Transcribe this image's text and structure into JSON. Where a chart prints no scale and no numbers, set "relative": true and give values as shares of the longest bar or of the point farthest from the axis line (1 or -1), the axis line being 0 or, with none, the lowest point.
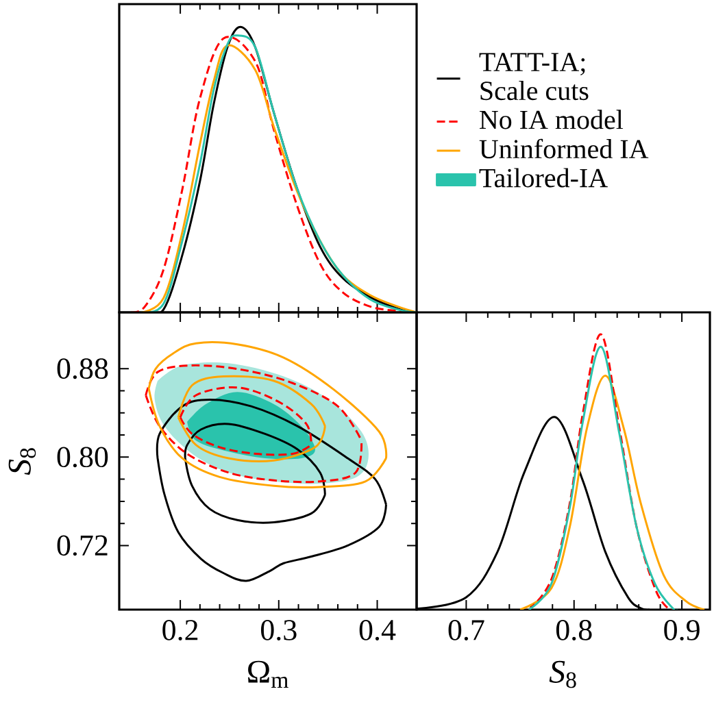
{
  "chart_data": [
    {
      "type": "line",
      "relative": true,
      "xlim": [
        0.138,
        0.44
      ],
      "xticks": [
        0.2,
        0.3,
        0.4
      ],
      "tick_labels": false,
      "legend": "right",
      "series": [
        {
          "name": "TATT-IA; Scale cuts",
          "color": "#000000",
          "line_style": "solid",
          "x": [
            0.164,
            0.183,
            0.202,
            0.22,
            0.234,
            0.248,
            0.261,
            0.276,
            0.295,
            0.318,
            0.342,
            0.365,
            0.393,
            0.421,
            0.44
          ],
          "values": [
            0,
            0.01,
            0.2,
            0.46,
            0.73,
            0.93,
            1,
            0.93,
            0.7,
            0.44,
            0.23,
            0.12,
            0.053,
            0.013,
            0
          ]
        },
        {
          "name": "No IA model",
          "color": "#ff0000",
          "line_style": "dashed",
          "x": [
            0.15,
            0.164,
            0.183,
            0.202,
            0.22,
            0.244,
            0.276,
            0.295,
            0.318,
            0.342,
            0.365,
            0.393,
            0.421,
            0.44
          ],
          "values": [
            0,
            0.02,
            0.15,
            0.43,
            0.75,
            0.96,
            0.88,
            0.64,
            0.38,
            0.17,
            0.07,
            0.02,
            0.005,
            0
          ]
        },
        {
          "name": "Uninformed IA",
          "color": "#ffa500",
          "line_style": "solid",
          "x": [
            0.16,
            0.183,
            0.202,
            0.22,
            0.234,
            0.248,
            0.276,
            0.295,
            0.318,
            0.342,
            0.365,
            0.393,
            0.421,
            0.44
          ],
          "values": [
            0,
            0.05,
            0.28,
            0.59,
            0.81,
            0.935,
            0.85,
            0.65,
            0.43,
            0.25,
            0.13,
            0.06,
            0.02,
            0
          ]
        },
        {
          "name": "Tailored-IA",
          "color": "#2ac3ac",
          "line_style": "solid",
          "x": [
            0.16,
            0.183,
            0.202,
            0.22,
            0.234,
            0.248,
            0.258,
            0.276,
            0.295,
            0.318,
            0.342,
            0.365,
            0.393,
            0.421,
            0.44
          ],
          "values": [
            0,
            0.03,
            0.25,
            0.52,
            0.78,
            0.94,
            0.97,
            0.93,
            0.7,
            0.44,
            0.25,
            0.13,
            0.045,
            0.01,
            0
          ]
        }
      ]
    },
    {
      "type": "line",
      "xlabel": "Ω$_{m}$",
      "ylabel": "*S*$_{8}$",
      "xlim": [
        0.138,
        0.44
      ],
      "ylim": [
        0.662,
        0.931
      ],
      "xticks": [
        0.2,
        0.3,
        0.4
      ],
      "yticks": [
        0.72,
        {
          "value": 0.8,
          "label": "0.80"
        },
        0.88
      ],
      "series": [
        {
          "type": "area",
          "color": "#a8e5dc",
          "x": [
            0.177,
            0.202,
            0.249,
            0.305,
            0.351,
            0.384,
            0.391,
            0.379,
            0.342,
            0.295,
            0.249,
            0.212,
            0.184,
            0.174,
            0.177
          ],
          "values": [
            0.869,
            0.883,
            0.885,
            0.873,
            0.852,
            0.823,
            0.799,
            0.782,
            0.776,
            0.778,
            0.786,
            0.803,
            0.828,
            0.852,
            0.869
          ]
        },
        {
          "type": "area",
          "color": "#2ac3ac",
          "x": [
            0.207,
            0.226,
            0.258,
            0.295,
            0.323,
            0.337,
            0.323,
            0.286,
            0.249,
            0.216,
            0.207
          ],
          "values": [
            0.832,
            0.848,
            0.859,
            0.848,
            0.828,
            0.807,
            0.799,
            0.799,
            0.805,
            0.815,
            0.832
          ]
        },
        {
          "color": "#000000",
          "line_style": "solid",
          "x": [
            0.177,
            0.179,
            0.202,
            0.23,
            0.272,
            0.319,
            0.37,
            0.398,
            0.409,
            null,
            0.177,
            0.184,
            0.198,
            0.221,
            0.244,
            0.267,
            0.291,
            0.305,
            0.333,
            0.37,
            0.402,
            0.409
          ],
          "values": [
            0.799,
            0.821,
            0.846,
            0.852,
            0.846,
            0.828,
            0.799,
            0.78,
            0.757,
            null,
            0.799,
            0.766,
            0.732,
            0.708,
            0.695,
            0.688,
            0.697,
            0.704,
            0.71,
            0.72,
            0.737,
            0.757
          ]
        },
        {
          "color": "#000000",
          "line_style": "solid",
          "x": [
            0.205,
            0.207,
            0.221,
            0.249,
            0.286,
            0.319,
            0.342,
            0.347,
            null,
            0.205,
            0.212,
            0.23,
            0.258,
            0.295,
            0.333,
            0.347
          ],
          "values": [
            0.799,
            0.811,
            0.825,
            0.83,
            0.821,
            0.807,
            0.786,
            0.766,
            null,
            0.799,
            0.774,
            0.753,
            0.743,
            0.741,
            0.749,
            0.766
          ]
        },
        {
          "color": "#ff0000",
          "line_style": "dashed",
          "x": [
            0.165,
            0.177,
            0.212,
            0.263,
            0.314,
            0.36,
            0.384,
            null,
            0.165,
            0.179,
            0.207,
            0.249,
            0.295,
            0.342,
            0.378,
            0.384
          ],
          "values": [
            0.856,
            0.877,
            0.883,
            0.879,
            0.867,
            0.846,
            0.815,
            null,
            0.856,
            0.828,
            0.803,
            0.786,
            0.779,
            0.778,
            0.786,
            0.815
          ]
        },
        {
          "color": "#ff0000",
          "line_style": "dashed",
          "x": [
            0.2,
            0.216,
            0.258,
            0.3,
            0.328,
            0.333,
            null,
            0.2,
            0.212,
            0.24,
            0.277,
            0.314,
            0.333
          ],
          "values": [
            0.836,
            0.856,
            0.863,
            0.85,
            0.83,
            0.811,
            null,
            0.836,
            0.821,
            0.809,
            0.803,
            0.803,
            0.811
          ]
        },
        {
          "color": "#ffa500",
          "line_style": "solid",
          "x": [
            0.168,
            0.175,
            0.193,
            0.216,
            0.258,
            0.305,
            0.356,
            0.402,
            0.409,
            null,
            0.168,
            0.179,
            0.202,
            0.24,
            0.295,
            0.342,
            0.388,
            0.409
          ],
          "values": [
            0.862,
            0.88,
            0.894,
            0.903,
            0.902,
            0.89,
            0.861,
            0.823,
            0.799,
            null,
            0.862,
            0.828,
            0.799,
            0.782,
            0.774,
            0.773,
            0.778,
            0.799
          ]
        },
        {
          "color": "#ffa500",
          "line_style": "solid",
          "x": [
            0.198,
            0.212,
            0.244,
            0.295,
            0.333,
            0.347,
            null,
            0.198,
            0.216,
            0.249,
            0.295,
            0.337,
            0.347
          ],
          "values": [
            0.836,
            0.865,
            0.873,
            0.869,
            0.848,
            0.828,
            null,
            0.836,
            0.811,
            0.799,
            0.797,
            0.809,
            0.828
          ]
        }
      ]
    },
    {
      "type": "line",
      "relative": true,
      "xlabel": "*S*$_{8}$",
      "xlim": [
        0.654,
        0.926
      ],
      "xticks": [
        0.7,
        0.8,
        0.9
      ],
      "tick_labels": "x",
      "series": [
        {
          "color": "#000000",
          "line_style": "solid",
          "x": [
            0.654,
            0.7,
            0.729,
            0.754,
            0.782,
            0.808,
            0.829,
            0.85,
            0.862,
            0.87
          ],
          "values": [
            0.003,
            0.045,
            0.21,
            0.5,
            0.7,
            0.47,
            0.21,
            0.045,
            0.005,
            0
          ]
        },
        {
          "color": "#ffa500",
          "line_style": "solid",
          "x": [
            0.75,
            0.779,
            0.796,
            0.812,
            0.829,
            0.846,
            0.862,
            0.883,
            0.904,
            0.921
          ],
          "values": [
            0,
            0.078,
            0.3,
            0.66,
            0.85,
            0.66,
            0.385,
            0.126,
            0.03,
            0
          ]
        },
        {
          "color": "#ff0000",
          "line_style": "dashed",
          "x": [
            0.758,
            0.779,
            0.796,
            0.808,
            0.825,
            0.842,
            0.858,
            0.875,
            0.887,
            0.893
          ],
          "values": [
            0,
            0.11,
            0.385,
            0.71,
            1,
            0.66,
            0.3,
            0.078,
            0.005,
            0
          ]
        },
        {
          "color": "#2ac3ac",
          "line_style": "solid",
          "x": [
            0.758,
            0.779,
            0.796,
            0.808,
            0.825,
            0.842,
            0.858,
            0.875,
            0.892,
            0.896
          ],
          "values": [
            0,
            0.094,
            0.37,
            0.68,
            0.955,
            0.64,
            0.3,
            0.094,
            0.003,
            0
          ]
        }
      ]
    }
  ]
}
